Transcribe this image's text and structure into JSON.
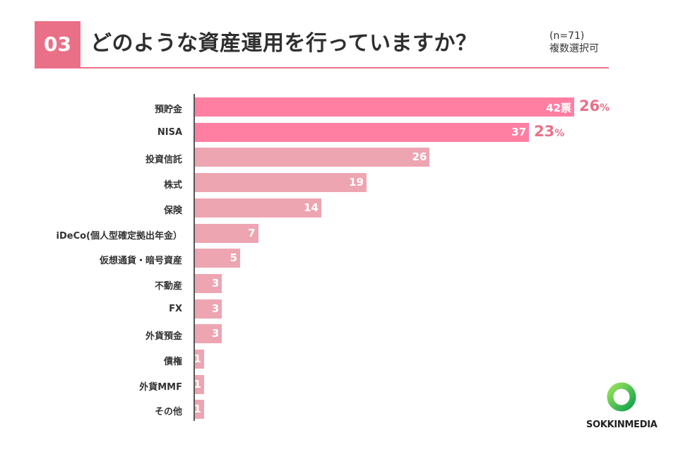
{
  "header": {
    "number": "03",
    "title": "どのような資産運用を行っていますか？",
    "sample": "(n=71)",
    "note": "複数選択可"
  },
  "colors": {
    "highlight": "#ff7fa3",
    "regular": "#eea5b2",
    "accent": "#ea7088"
  },
  "chart_data": {
    "type": "bar",
    "orientation": "horizontal",
    "categories": [
      "預貯金",
      "NISA",
      "投資信託",
      "株式",
      "保険",
      "iDeCo(個人型確定拠出年金）",
      "仮想通貨・暗号資産",
      "不動産",
      "FX",
      "外貨預金",
      "債権",
      "外貨MMF",
      "その他"
    ],
    "values": [
      42,
      37,
      26,
      19,
      14,
      7,
      5,
      3,
      3,
      3,
      1,
      1,
      1
    ],
    "value_labels": [
      "42票",
      "37",
      "26",
      "19",
      "14",
      "7",
      "5",
      "3",
      "3",
      "3",
      "1",
      "1",
      "1"
    ],
    "percent_labels": [
      "26",
      "23",
      "",
      "",
      "",
      "",
      "",
      "",
      "",
      "",
      "",
      "",
      ""
    ],
    "percent_unit": "%",
    "highlighted": [
      true,
      true,
      false,
      false,
      false,
      false,
      false,
      false,
      false,
      false,
      false,
      false,
      false
    ],
    "xlim": [
      0,
      42
    ],
    "grid": false
  },
  "brand": {
    "name_a": "SOKKIN",
    "name_b": "MEDIA"
  }
}
